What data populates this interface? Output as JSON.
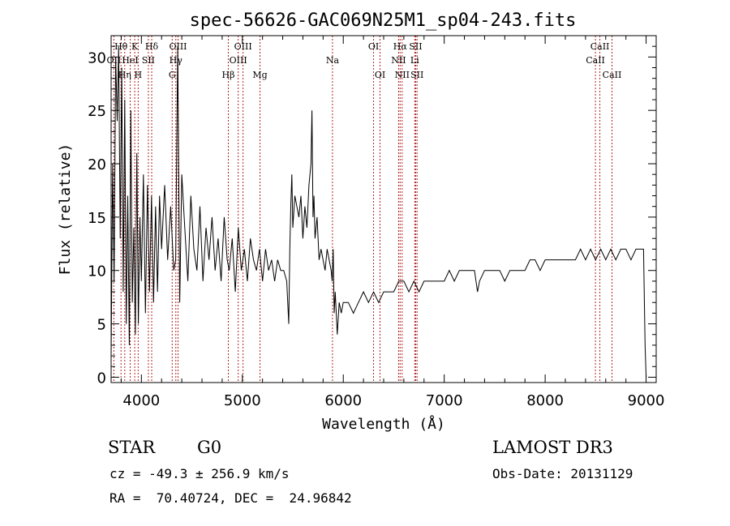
{
  "chart_data": {
    "type": "line",
    "title": "spec-56626-GAC069N25M1_sp04-243.fits",
    "xlabel": "Wavelength (Å)",
    "ylabel": "Flux (relative)",
    "xlim": [
      3700,
      9100
    ],
    "ylim": [
      -0.5,
      32
    ],
    "xticks": [
      4000,
      5000,
      6000,
      7000,
      8000,
      9000
    ],
    "xtick_labels": [
      "4000",
      "5000",
      "6000",
      "7000",
      "8000",
      "9000"
    ],
    "yticks": [
      0,
      5,
      10,
      15,
      20,
      25,
      30
    ],
    "ytick_labels": [
      "0",
      "5",
      "10",
      "15",
      "20",
      "25",
      "30"
    ],
    "line_color": "#000000",
    "marker_color": "#b22222",
    "spectrum": {
      "name": "flux",
      "x": [
        3700,
        3715,
        3730,
        3745,
        3760,
        3775,
        3790,
        3805,
        3820,
        3835,
        3850,
        3865,
        3880,
        3895,
        3910,
        3925,
        3940,
        3955,
        3970,
        3985,
        4000,
        4020,
        4040,
        4060,
        4080,
        4100,
        4120,
        4140,
        4160,
        4180,
        4200,
        4230,
        4260,
        4290,
        4320,
        4340,
        4360,
        4380,
        4400,
        4430,
        4460,
        4490,
        4520,
        4550,
        4580,
        4610,
        4640,
        4670,
        4700,
        4730,
        4760,
        4790,
        4820,
        4850,
        4870,
        4900,
        4930,
        4960,
        4990,
        5020,
        5050,
        5080,
        5110,
        5140,
        5170,
        5200,
        5230,
        5260,
        5290,
        5320,
        5350,
        5380,
        5410,
        5440,
        5460,
        5470,
        5480,
        5490,
        5500,
        5520,
        5540,
        5560,
        5580,
        5600,
        5620,
        5640,
        5660,
        5680,
        5690,
        5700,
        5710,
        5720,
        5740,
        5760,
        5780,
        5800,
        5820,
        5840,
        5860,
        5880,
        5890,
        5900,
        5910,
        5920,
        5940,
        5960,
        5980,
        6000,
        6050,
        6100,
        6150,
        6200,
        6250,
        6300,
        6350,
        6400,
        6450,
        6500,
        6550,
        6600,
        6650,
        6700,
        6750,
        6800,
        6850,
        6900,
        6950,
        7000,
        7050,
        7100,
        7150,
        7200,
        7250,
        7300,
        7330,
        7350,
        7400,
        7450,
        7500,
        7550,
        7600,
        7650,
        7700,
        7750,
        7800,
        7850,
        7900,
        7950,
        8000,
        8050,
        8100,
        8150,
        8200,
        8250,
        8300,
        8350,
        8400,
        8450,
        8500,
        8550,
        8600,
        8650,
        8700,
        8750,
        8800,
        8850,
        8900,
        8950,
        8975,
        8990,
        9000
      ],
      "y": [
        2,
        20,
        9,
        30,
        24,
        31,
        13,
        29,
        8,
        26,
        5,
        17,
        3,
        25,
        7,
        14,
        4,
        21,
        5,
        15,
        9,
        19,
        6,
        18,
        8,
        17,
        7,
        16,
        8,
        17,
        12,
        18,
        11,
        16,
        10,
        11,
        31,
        7,
        19,
        14,
        9,
        17,
        12,
        10,
        16,
        9,
        14,
        11,
        15,
        10,
        13,
        9,
        15,
        11,
        10,
        13,
        8,
        14,
        10,
        12,
        9,
        13,
        11,
        10,
        12,
        9,
        12,
        10,
        11,
        9,
        11,
        10,
        10,
        9,
        5,
        12,
        16,
        19,
        14,
        17,
        16,
        15,
        17,
        13,
        16,
        14,
        18,
        20,
        25,
        15,
        17,
        13,
        15,
        11,
        12,
        11,
        10,
        12,
        11,
        10,
        9,
        12,
        6,
        8,
        4,
        7,
        6,
        7,
        7,
        6,
        7,
        8,
        7,
        8,
        7,
        8,
        8,
        8,
        9,
        9,
        8,
        9,
        8,
        9,
        9,
        9,
        9,
        9,
        10,
        9,
        10,
        10,
        10,
        10,
        8,
        9,
        10,
        10,
        10,
        10,
        9,
        10,
        10,
        10,
        10,
        11,
        11,
        10,
        11,
        11,
        11,
        11,
        11,
        11,
        11,
        12,
        11,
        12,
        11,
        12,
        11,
        12,
        11,
        12,
        12,
        11,
        12,
        12,
        12,
        3,
        0
      ]
    },
    "lines": [
      {
        "label": "Hθ",
        "x": 3798,
        "row": 0
      },
      {
        "label": "K",
        "x": 3934,
        "row": 0
      },
      {
        "label": "Hδ",
        "x": 4102,
        "row": 0
      },
      {
        "label": "OII",
        "x": 3727,
        "row": 1
      },
      {
        "label": "Hη",
        "x": 3835,
        "row": 2
      },
      {
        "label": "HeI",
        "x": 3889,
        "row": 1
      },
      {
        "label": "SII",
        "x": 4069,
        "row": 1
      },
      {
        "label": "H",
        "x": 3968,
        "row": 2
      },
      {
        "label": "OIII",
        "x": 4363,
        "row": 0
      },
      {
        "label": "Hγ",
        "x": 4341,
        "row": 1
      },
      {
        "label": "G",
        "x": 4305,
        "row": 2
      },
      {
        "label": "OIII",
        "x": 5007,
        "row": 0
      },
      {
        "label": "OIII",
        "x": 4959,
        "row": 1
      },
      {
        "label": "Hβ",
        "x": 4861,
        "row": 2
      },
      {
        "label": "Mg",
        "x": 5175,
        "row": 2
      },
      {
        "label": "Na",
        "x": 5893,
        "row": 1
      },
      {
        "label": "OI",
        "x": 6300,
        "row": 0
      },
      {
        "label": "OI",
        "x": 6364,
        "row": 2
      },
      {
        "label": "Hα",
        "x": 6563,
        "row": 0
      },
      {
        "label": "SII",
        "x": 6717,
        "row": 0
      },
      {
        "label": "NII",
        "x": 6548,
        "row": 1
      },
      {
        "label": "Li",
        "x": 6708,
        "row": 1
      },
      {
        "label": "NII",
        "x": 6583,
        "row": 2
      },
      {
        "label": "SII",
        "x": 6731,
        "row": 2
      },
      {
        "label": "CaII",
        "x": 8542,
        "row": 0
      },
      {
        "label": "CaII",
        "x": 8498,
        "row": 1
      },
      {
        "label": "CaII",
        "x": 8662,
        "row": 2
      }
    ]
  },
  "info": {
    "class": "STAR",
    "subclass": "G0",
    "survey": "LAMOST DR3",
    "redshift": "cz = -49.3 ± 256.9 km/s",
    "obs_date": "Obs-Date: 20131129",
    "coords": "RA =  70.40724, DEC =  24.96842"
  }
}
